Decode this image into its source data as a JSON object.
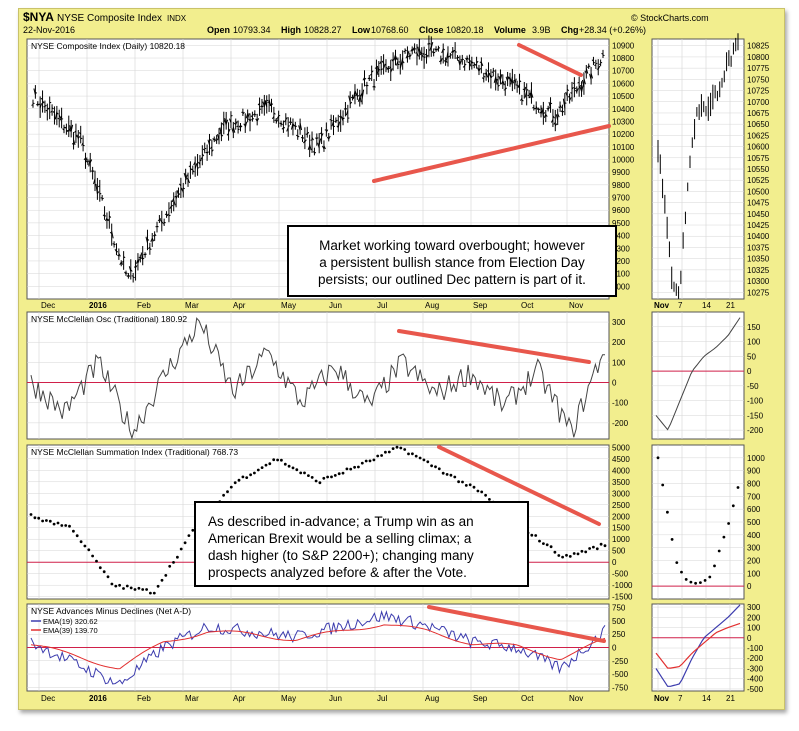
{
  "header": {
    "symbol": "$NYA",
    "name": "NYSE Composite Index",
    "exchange": "INDX",
    "date": "22-Nov-2016",
    "open_label": "Open",
    "open": "10793.34",
    "high_label": "High",
    "high": "10828.27",
    "low_label": "Low",
    "low": "10768.60",
    "close_label": "Close",
    "close": "10820.18",
    "volume_label": "Volume",
    "volume": "3.9B",
    "chg_label": "Chg",
    "chg": "+28.34 (+0.26%)",
    "source": "© StockCharts.com"
  },
  "annotations": {
    "note1": [
      "Market working toward overbought; however",
      "a persistent bullish stance from Election Day",
      "persists; our outlined Dec pattern is part of it."
    ],
    "note2": [
      "As described in-advance; a Trump win as an",
      "American Brexit would be a selling climax; a",
      "dash higher (to S&P 2200+); changing many",
      "prospects analyzed before & after the Vote."
    ]
  },
  "colors": {
    "background": "#f2ee8e",
    "panel": "#ffffff",
    "price_bar": "#000000",
    "trendline": "#e8574c",
    "zero_line": "#d0204a",
    "ema19": "#3c3cae",
    "ema39": "#e23030",
    "grid": "#d6d6d6"
  },
  "chart_data": [
    {
      "type": "line",
      "panel": "price",
      "style": "ohlc bars",
      "title": "NYSE Composite Index (Daily) 10820.18",
      "ylim": [
        8900,
        10950
      ],
      "yticks": [
        "10900",
        "10800",
        "10700",
        "10600",
        "10500",
        "10400",
        "10300",
        "10200",
        "10100",
        "10000",
        "9900",
        "9800",
        "9700",
        "9600",
        "9500",
        "9400",
        "9300",
        "9200",
        "9100",
        "9000"
      ],
      "xticks": [
        "Dec",
        "2016",
        "Feb",
        "Mar",
        "Apr",
        "May",
        "Jun",
        "Jul",
        "Aug",
        "Sep",
        "Oct",
        "Nov"
      ],
      "x": [
        "Dec",
        "2016",
        "Feb",
        "Mar",
        "Apr",
        "May",
        "Jun",
        "Jul",
        "Aug",
        "Sep",
        "Oct",
        "Nov",
        "Nov 22"
      ],
      "values": [
        10500,
        10150,
        9050,
        9700,
        10250,
        10400,
        10100,
        10600,
        10850,
        10800,
        10600,
        10350,
        10820
      ]
    },
    {
      "type": "line",
      "panel": "price-zoom",
      "style": "ohlc bars",
      "ylim": [
        10260,
        10840
      ],
      "yticks": [
        "10825",
        "10800",
        "10775",
        "10750",
        "10725",
        "10700",
        "10675",
        "10650",
        "10625",
        "10600",
        "10575",
        "10550",
        "10525",
        "10500",
        "10475",
        "10450",
        "10425",
        "10400",
        "10375",
        "10350",
        "10325",
        "10300",
        "10275"
      ],
      "xticks": [
        "Nov",
        "7",
        "14",
        "21"
      ],
      "values": [
        10600,
        10450,
        10300,
        10280,
        10500,
        10650,
        10700,
        10680,
        10720,
        10760,
        10800,
        10820
      ]
    },
    {
      "type": "line",
      "panel": "mcclellan-osc",
      "title": "NYSE McClellan Osc (Traditional) 180.92",
      "ylim": [
        -280,
        350
      ],
      "yticks": [
        "300",
        "200",
        "100",
        "0",
        "-100",
        "-200"
      ],
      "values": [
        0,
        -150,
        100,
        -250,
        50,
        300,
        -50,
        150,
        -100,
        80,
        -120,
        100,
        -60,
        50,
        -120,
        60,
        -250,
        180
      ]
    },
    {
      "type": "line",
      "panel": "mcclellan-osc-zoom",
      "ylim": [
        -230,
        200
      ],
      "yticks": [
        "150",
        "100",
        "50",
        "0",
        "-50",
        "-100",
        "-150",
        "-200"
      ],
      "values": [
        -150,
        -200,
        -100,
        0,
        50,
        80,
        120,
        181
      ]
    },
    {
      "type": "scatter",
      "panel": "summation",
      "title": "NYSE McClellan Summation Index (Traditional) 768.73",
      "ylim": [
        -1600,
        5100
      ],
      "yticks": [
        "5000",
        "4500",
        "4000",
        "3500",
        "3000",
        "2500",
        "2000",
        "1500",
        "1000",
        "500",
        "0",
        "-500",
        "-1000",
        "-1500"
      ],
      "values": [
        2000,
        1500,
        -1000,
        -1300,
        1500,
        3500,
        4500,
        3500,
        4200,
        5000,
        4000,
        3000,
        1500,
        200,
        769
      ]
    },
    {
      "type": "scatter",
      "panel": "summation-zoom",
      "ylim": [
        -100,
        1100
      ],
      "yticks": [
        "1000",
        "900",
        "800",
        "700",
        "600",
        "500",
        "400",
        "300",
        "200",
        "100",
        "0"
      ],
      "values": [
        1000,
        600,
        200,
        60,
        20,
        30,
        80,
        300,
        500,
        769
      ]
    },
    {
      "type": "line",
      "panel": "advances-declines",
      "title": "NYSE Advances Minus Declines (Net A-D)",
      "ylim": [
        -820,
        820
      ],
      "yticks": [
        "750",
        "500",
        "250",
        "0",
        "-250",
        "-500",
        "-750"
      ],
      "series": [
        {
          "name": "EMA(19) 320.62",
          "values": [
            100,
            -300,
            -700,
            0,
            400,
            300,
            200,
            400,
            600,
            400,
            100,
            0,
            -400,
            320
          ]
        },
        {
          "name": "EMA(39) 139.70",
          "values": [
            50,
            -150,
            -400,
            100,
            300,
            250,
            150,
            300,
            450,
            300,
            80,
            20,
            -200,
            140
          ]
        }
      ]
    },
    {
      "type": "line",
      "panel": "advances-declines-zoom",
      "ylim": [
        -520,
        330
      ],
      "yticks": [
        "300",
        "200",
        "100",
        "0",
        "-100",
        "-200",
        "-300",
        "-400",
        "-500"
      ],
      "xticks": [
        "Nov",
        "7",
        "14",
        "21"
      ],
      "series": [
        {
          "name": "EMA(19)",
          "values": [
            -300,
            -480,
            -450,
            -200,
            0,
            100,
            200,
            321
          ]
        },
        {
          "name": "EMA(39)",
          "values": [
            -150,
            -300,
            -280,
            -150,
            -50,
            50,
            100,
            140
          ]
        }
      ]
    }
  ]
}
